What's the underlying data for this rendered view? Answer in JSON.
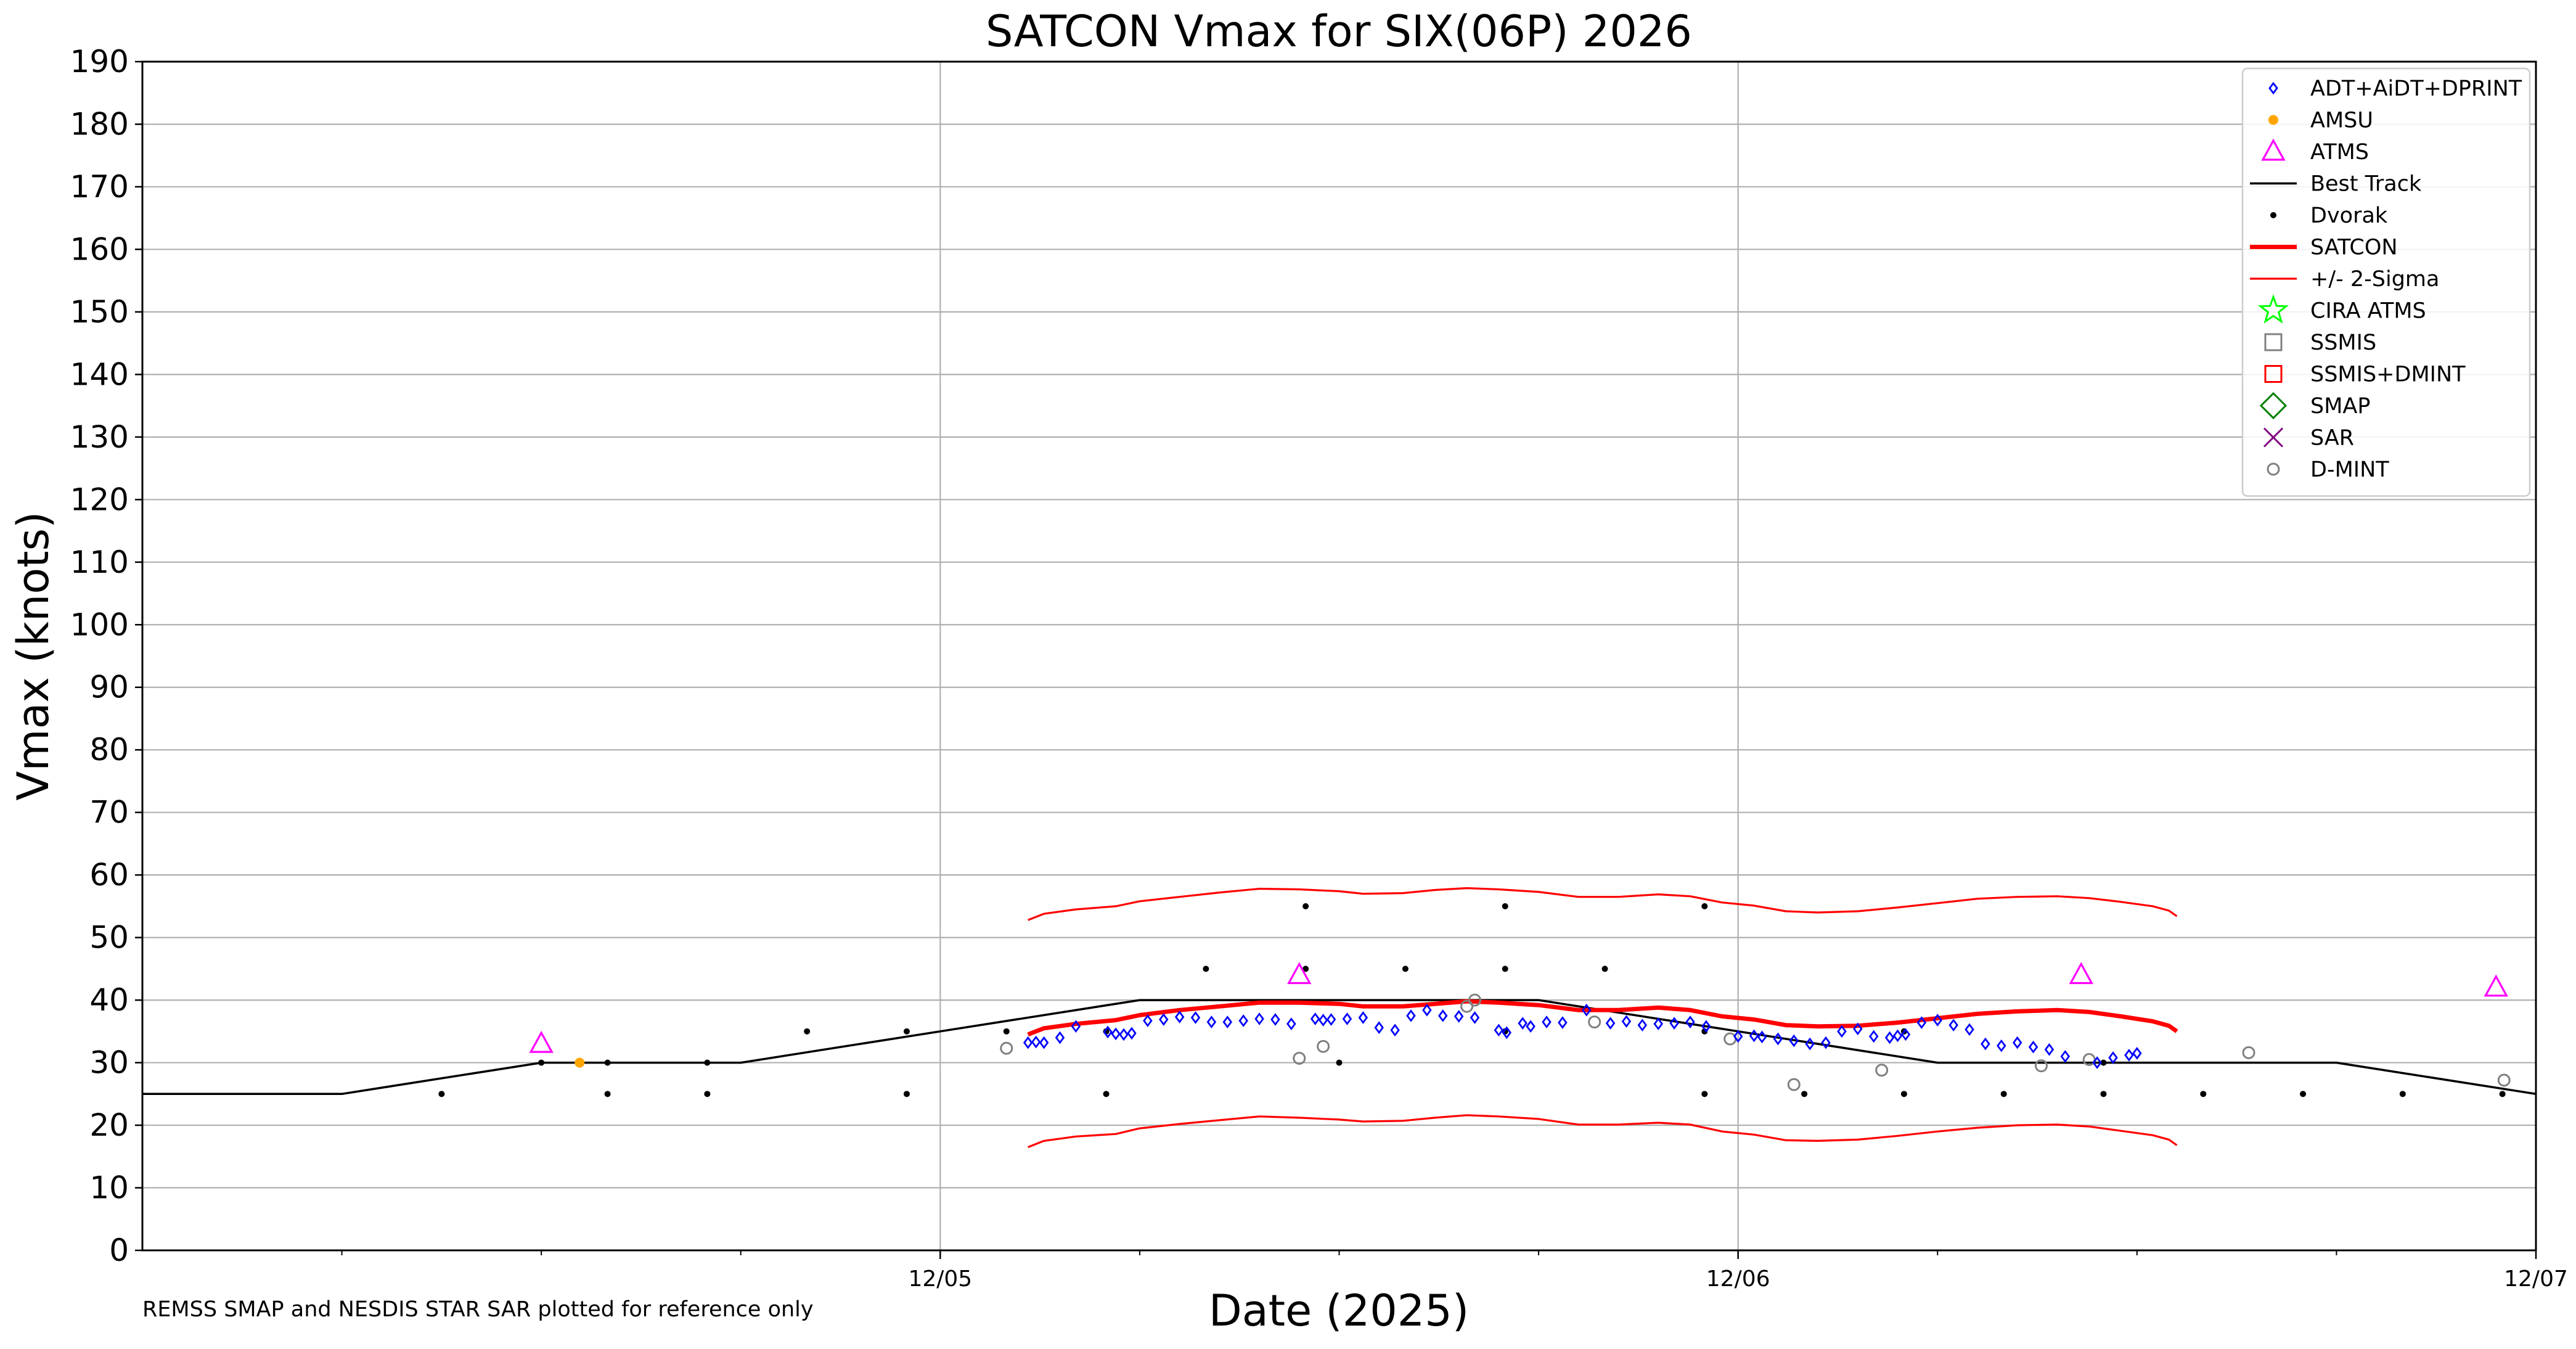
{
  "chart_data": {
    "type": "scatter",
    "title": "SATCON Vmax for SIX(06P) 2026",
    "xlabel": "Date (2025)",
    "ylabel": "Vmax (knots)",
    "footnote": "REMSS SMAP and NESDIS STAR SAR plotted for reference only",
    "x_unit": "days since 12/04 00Z",
    "xlim": [
      0,
      3
    ],
    "ylim": [
      0,
      190
    ],
    "x_ticks": [
      {
        "x": 1,
        "label": "12/05"
      },
      {
        "x": 2,
        "label": "12/06"
      },
      {
        "x": 3,
        "label": "12/07"
      }
    ],
    "x_minor_ticks": [
      0.25,
      0.5,
      0.75,
      1.25,
      1.5,
      1.75,
      2.25,
      2.5,
      2.75
    ],
    "y_ticks": [
      0,
      10,
      20,
      30,
      40,
      50,
      60,
      70,
      80,
      90,
      100,
      110,
      120,
      130,
      140,
      150,
      160,
      170,
      180,
      190
    ],
    "grid": true,
    "legend_position": "top-right",
    "legend": [
      {
        "label": "ADT+AiDT+DPRINT",
        "marker": "diamond",
        "color": "#0000ff"
      },
      {
        "label": "AMSU",
        "marker": "dot",
        "color": "#ffa500"
      },
      {
        "label": "ATMS",
        "marker": "triangle",
        "color": "#ff00ff"
      },
      {
        "label": "Best Track",
        "marker": "line",
        "color": "#000000"
      },
      {
        "label": "Dvorak",
        "marker": "dot-small",
        "color": "#000000"
      },
      {
        "label": "SATCON",
        "marker": "line-thick",
        "color": "#ff0000"
      },
      {
        "label": "+/- 2-Sigma",
        "marker": "line-thin",
        "color": "#ff0000"
      },
      {
        "label": "CIRA ATMS",
        "marker": "star",
        "color": "#00ff00"
      },
      {
        "label": "SSMIS",
        "marker": "square",
        "color": "#808080"
      },
      {
        "label": "SSMIS+DMINT",
        "marker": "square",
        "color": "#ff0000"
      },
      {
        "label": "SMAP",
        "marker": "big-diamond",
        "color": "#008000"
      },
      {
        "label": "SAR",
        "marker": "x",
        "color": "#800080"
      },
      {
        "label": "D-MINT",
        "marker": "circle",
        "color": "#808080"
      }
    ],
    "series": [
      {
        "name": "Best Track",
        "style": "line",
        "color": "#000000",
        "points": [
          [
            0,
            25
          ],
          [
            0.25,
            25
          ],
          [
            0.5,
            30
          ],
          [
            0.75,
            30
          ],
          [
            1.0,
            35
          ],
          [
            1.25,
            40
          ],
          [
            1.5,
            40
          ],
          [
            1.75,
            40
          ],
          [
            2.0,
            35
          ],
          [
            2.25,
            30
          ],
          [
            2.5,
            30
          ],
          [
            2.75,
            30
          ],
          [
            3.0,
            25
          ]
        ]
      },
      {
        "name": "SATCON",
        "style": "line-thick",
        "color": "#ff0000",
        "points": [
          [
            1.11,
            34.5
          ],
          [
            1.13,
            35.5
          ],
          [
            1.17,
            36.2
          ],
          [
            1.22,
            36.8
          ],
          [
            1.25,
            37.6
          ],
          [
            1.3,
            38.4
          ],
          [
            1.35,
            39.0
          ],
          [
            1.4,
            39.6
          ],
          [
            1.45,
            39.6
          ],
          [
            1.5,
            39.4
          ],
          [
            1.53,
            39.0
          ],
          [
            1.58,
            39.0
          ],
          [
            1.62,
            39.4
          ],
          [
            1.66,
            39.8
          ],
          [
            1.7,
            39.6
          ],
          [
            1.75,
            39.2
          ],
          [
            1.8,
            38.4
          ],
          [
            1.85,
            38.4
          ],
          [
            1.9,
            38.8
          ],
          [
            1.94,
            38.4
          ],
          [
            1.98,
            37.4
          ],
          [
            2.02,
            36.9
          ],
          [
            2.06,
            36.0
          ],
          [
            2.1,
            35.8
          ],
          [
            2.15,
            35.9
          ],
          [
            2.2,
            36.4
          ],
          [
            2.25,
            37.1
          ],
          [
            2.3,
            37.8
          ],
          [
            2.35,
            38.2
          ],
          [
            2.4,
            38.4
          ],
          [
            2.44,
            38.1
          ],
          [
            2.48,
            37.4
          ],
          [
            2.52,
            36.6
          ],
          [
            2.54,
            35.9
          ],
          [
            2.55,
            35.0
          ]
        ]
      },
      {
        "name": "+/- 2-Sigma",
        "style": "line-thin",
        "color": "#ff0000",
        "points": [
          [
            1.11,
            52.8
          ],
          [
            1.13,
            53.8
          ],
          [
            1.17,
            54.5
          ],
          [
            1.22,
            55.0
          ],
          [
            1.25,
            55.8
          ],
          [
            1.3,
            56.5
          ],
          [
            1.35,
            57.2
          ],
          [
            1.4,
            57.8
          ],
          [
            1.45,
            57.7
          ],
          [
            1.5,
            57.4
          ],
          [
            1.53,
            57.0
          ],
          [
            1.58,
            57.1
          ],
          [
            1.62,
            57.6
          ],
          [
            1.66,
            57.9
          ],
          [
            1.7,
            57.7
          ],
          [
            1.75,
            57.3
          ],
          [
            1.8,
            56.5
          ],
          [
            1.85,
            56.5
          ],
          [
            1.9,
            56.9
          ],
          [
            1.94,
            56.6
          ],
          [
            1.98,
            55.6
          ],
          [
            2.02,
            55.1
          ],
          [
            2.06,
            54.2
          ],
          [
            2.1,
            54.0
          ],
          [
            2.15,
            54.2
          ],
          [
            2.2,
            54.8
          ],
          [
            2.25,
            55.5
          ],
          [
            2.3,
            56.2
          ],
          [
            2.35,
            56.5
          ],
          [
            2.4,
            56.6
          ],
          [
            2.44,
            56.3
          ],
          [
            2.48,
            55.7
          ],
          [
            2.52,
            55.0
          ],
          [
            2.54,
            54.3
          ],
          [
            2.55,
            53.4
          ]
        ]
      },
      {
        "name": "+/- 2-Sigma",
        "style": "line-thin",
        "color": "#ff0000",
        "points": [
          [
            1.11,
            16.5
          ],
          [
            1.13,
            17.5
          ],
          [
            1.17,
            18.2
          ],
          [
            1.22,
            18.6
          ],
          [
            1.25,
            19.5
          ],
          [
            1.3,
            20.2
          ],
          [
            1.35,
            20.8
          ],
          [
            1.4,
            21.4
          ],
          [
            1.45,
            21.2
          ],
          [
            1.5,
            20.9
          ],
          [
            1.53,
            20.6
          ],
          [
            1.58,
            20.7
          ],
          [
            1.62,
            21.2
          ],
          [
            1.66,
            21.6
          ],
          [
            1.7,
            21.4
          ],
          [
            1.75,
            21.0
          ],
          [
            1.8,
            20.1
          ],
          [
            1.85,
            20.1
          ],
          [
            1.9,
            20.4
          ],
          [
            1.94,
            20.1
          ],
          [
            1.98,
            19.0
          ],
          [
            2.02,
            18.5
          ],
          [
            2.06,
            17.6
          ],
          [
            2.1,
            17.5
          ],
          [
            2.15,
            17.7
          ],
          [
            2.2,
            18.3
          ],
          [
            2.25,
            19.0
          ],
          [
            2.3,
            19.6
          ],
          [
            2.35,
            20.0
          ],
          [
            2.4,
            20.1
          ],
          [
            2.44,
            19.8
          ],
          [
            2.48,
            19.1
          ],
          [
            2.52,
            18.4
          ],
          [
            2.54,
            17.7
          ],
          [
            2.55,
            16.8
          ]
        ]
      },
      {
        "name": "Dvorak",
        "style": "dot-small",
        "color": "#000000",
        "points": [
          [
            0.375,
            25
          ],
          [
            0.5,
            30
          ],
          [
            0.583,
            30
          ],
          [
            0.583,
            25
          ],
          [
            0.708,
            30
          ],
          [
            0.708,
            25
          ],
          [
            0.833,
            35
          ],
          [
            0.958,
            35
          ],
          [
            0.958,
            25
          ],
          [
            1.083,
            35
          ],
          [
            1.208,
            35
          ],
          [
            1.208,
            25
          ],
          [
            1.333,
            45
          ],
          [
            1.458,
            55
          ],
          [
            1.458,
            45
          ],
          [
            1.5,
            30
          ],
          [
            1.583,
            45
          ],
          [
            1.708,
            55
          ],
          [
            1.708,
            45
          ],
          [
            1.708,
            35
          ],
          [
            1.833,
            45
          ],
          [
            1.958,
            55
          ],
          [
            1.958,
            35
          ],
          [
            1.958,
            25
          ],
          [
            2.083,
            25
          ],
          [
            2.208,
            35
          ],
          [
            2.208,
            25
          ],
          [
            2.333,
            25
          ],
          [
            2.458,
            30
          ],
          [
            2.458,
            25
          ],
          [
            2.583,
            25
          ],
          [
            2.708,
            25
          ],
          [
            2.833,
            25
          ],
          [
            2.958,
            25
          ]
        ]
      },
      {
        "name": "AMSU",
        "style": "dot",
        "color": "#ffa500",
        "points": [
          [
            0.548,
            30
          ]
        ]
      },
      {
        "name": "ATMS",
        "style": "triangle",
        "color": "#ff00ff",
        "points": [
          [
            0.5,
            33
          ],
          [
            1.45,
            44
          ],
          [
            2.43,
            44
          ],
          [
            2.95,
            42
          ]
        ]
      },
      {
        "name": "D-MINT",
        "style": "circle",
        "color": "#808080",
        "points": [
          [
            1.083,
            32.3
          ],
          [
            1.45,
            30.7
          ],
          [
            1.48,
            32.6
          ],
          [
            1.66,
            39
          ],
          [
            1.67,
            40
          ],
          [
            1.82,
            36.5
          ],
          [
            1.99,
            33.8
          ],
          [
            2.07,
            26.5
          ],
          [
            2.18,
            28.8
          ],
          [
            2.38,
            29.5
          ],
          [
            2.44,
            30.5
          ],
          [
            2.64,
            31.6
          ],
          [
            2.96,
            27.2
          ]
        ]
      },
      {
        "name": "ADT+AiDT+DPRINT",
        "style": "diamond",
        "color": "#0000ff",
        "points": [
          [
            1.11,
            33.2
          ],
          [
            1.12,
            33.3
          ],
          [
            1.13,
            33.2
          ],
          [
            1.15,
            34.0
          ],
          [
            1.17,
            35.8
          ],
          [
            1.21,
            34.9
          ],
          [
            1.22,
            34.6
          ],
          [
            1.23,
            34.5
          ],
          [
            1.24,
            34.7
          ],
          [
            1.26,
            36.7
          ],
          [
            1.28,
            36.9
          ],
          [
            1.3,
            37.3
          ],
          [
            1.32,
            37.2
          ],
          [
            1.34,
            36.5
          ],
          [
            1.36,
            36.5
          ],
          [
            1.38,
            36.7
          ],
          [
            1.4,
            37.0
          ],
          [
            1.42,
            36.9
          ],
          [
            1.44,
            36.2
          ],
          [
            1.47,
            37.0
          ],
          [
            1.48,
            36.8
          ],
          [
            1.49,
            36.9
          ],
          [
            1.51,
            37.0
          ],
          [
            1.53,
            37.2
          ],
          [
            1.55,
            35.6
          ],
          [
            1.57,
            35.2
          ],
          [
            1.59,
            37.5
          ],
          [
            1.61,
            38.4
          ],
          [
            1.63,
            37.5
          ],
          [
            1.65,
            37.4
          ],
          [
            1.67,
            37.2
          ],
          [
            1.7,
            35.2
          ],
          [
            1.71,
            34.8
          ],
          [
            1.73,
            36.3
          ],
          [
            1.74,
            35.8
          ],
          [
            1.76,
            36.5
          ],
          [
            1.78,
            36.4
          ],
          [
            1.81,
            38.4
          ],
          [
            1.84,
            36.3
          ],
          [
            1.86,
            36.6
          ],
          [
            1.88,
            36.0
          ],
          [
            1.9,
            36.2
          ],
          [
            1.92,
            36.3
          ],
          [
            1.94,
            36.5
          ],
          [
            1.96,
            35.8
          ],
          [
            2.0,
            34.2
          ],
          [
            2.02,
            34.3
          ],
          [
            2.03,
            34.1
          ],
          [
            2.05,
            33.8
          ],
          [
            2.07,
            33.5
          ],
          [
            2.09,
            33.0
          ],
          [
            2.11,
            33.2
          ],
          [
            2.13,
            35.0
          ],
          [
            2.15,
            35.4
          ],
          [
            2.17,
            34.2
          ],
          [
            2.19,
            34.0
          ],
          [
            2.2,
            34.3
          ],
          [
            2.21,
            34.5
          ],
          [
            2.23,
            36.4
          ],
          [
            2.25,
            36.8
          ],
          [
            2.27,
            36.0
          ],
          [
            2.29,
            35.3
          ],
          [
            2.31,
            33.0
          ],
          [
            2.33,
            32.7
          ],
          [
            2.35,
            33.2
          ],
          [
            2.37,
            32.5
          ],
          [
            2.39,
            32.1
          ],
          [
            2.41,
            31.0
          ],
          [
            2.45,
            30.0
          ],
          [
            2.47,
            30.8
          ],
          [
            2.49,
            31.2
          ],
          [
            2.5,
            31.5
          ]
        ]
      }
    ]
  }
}
